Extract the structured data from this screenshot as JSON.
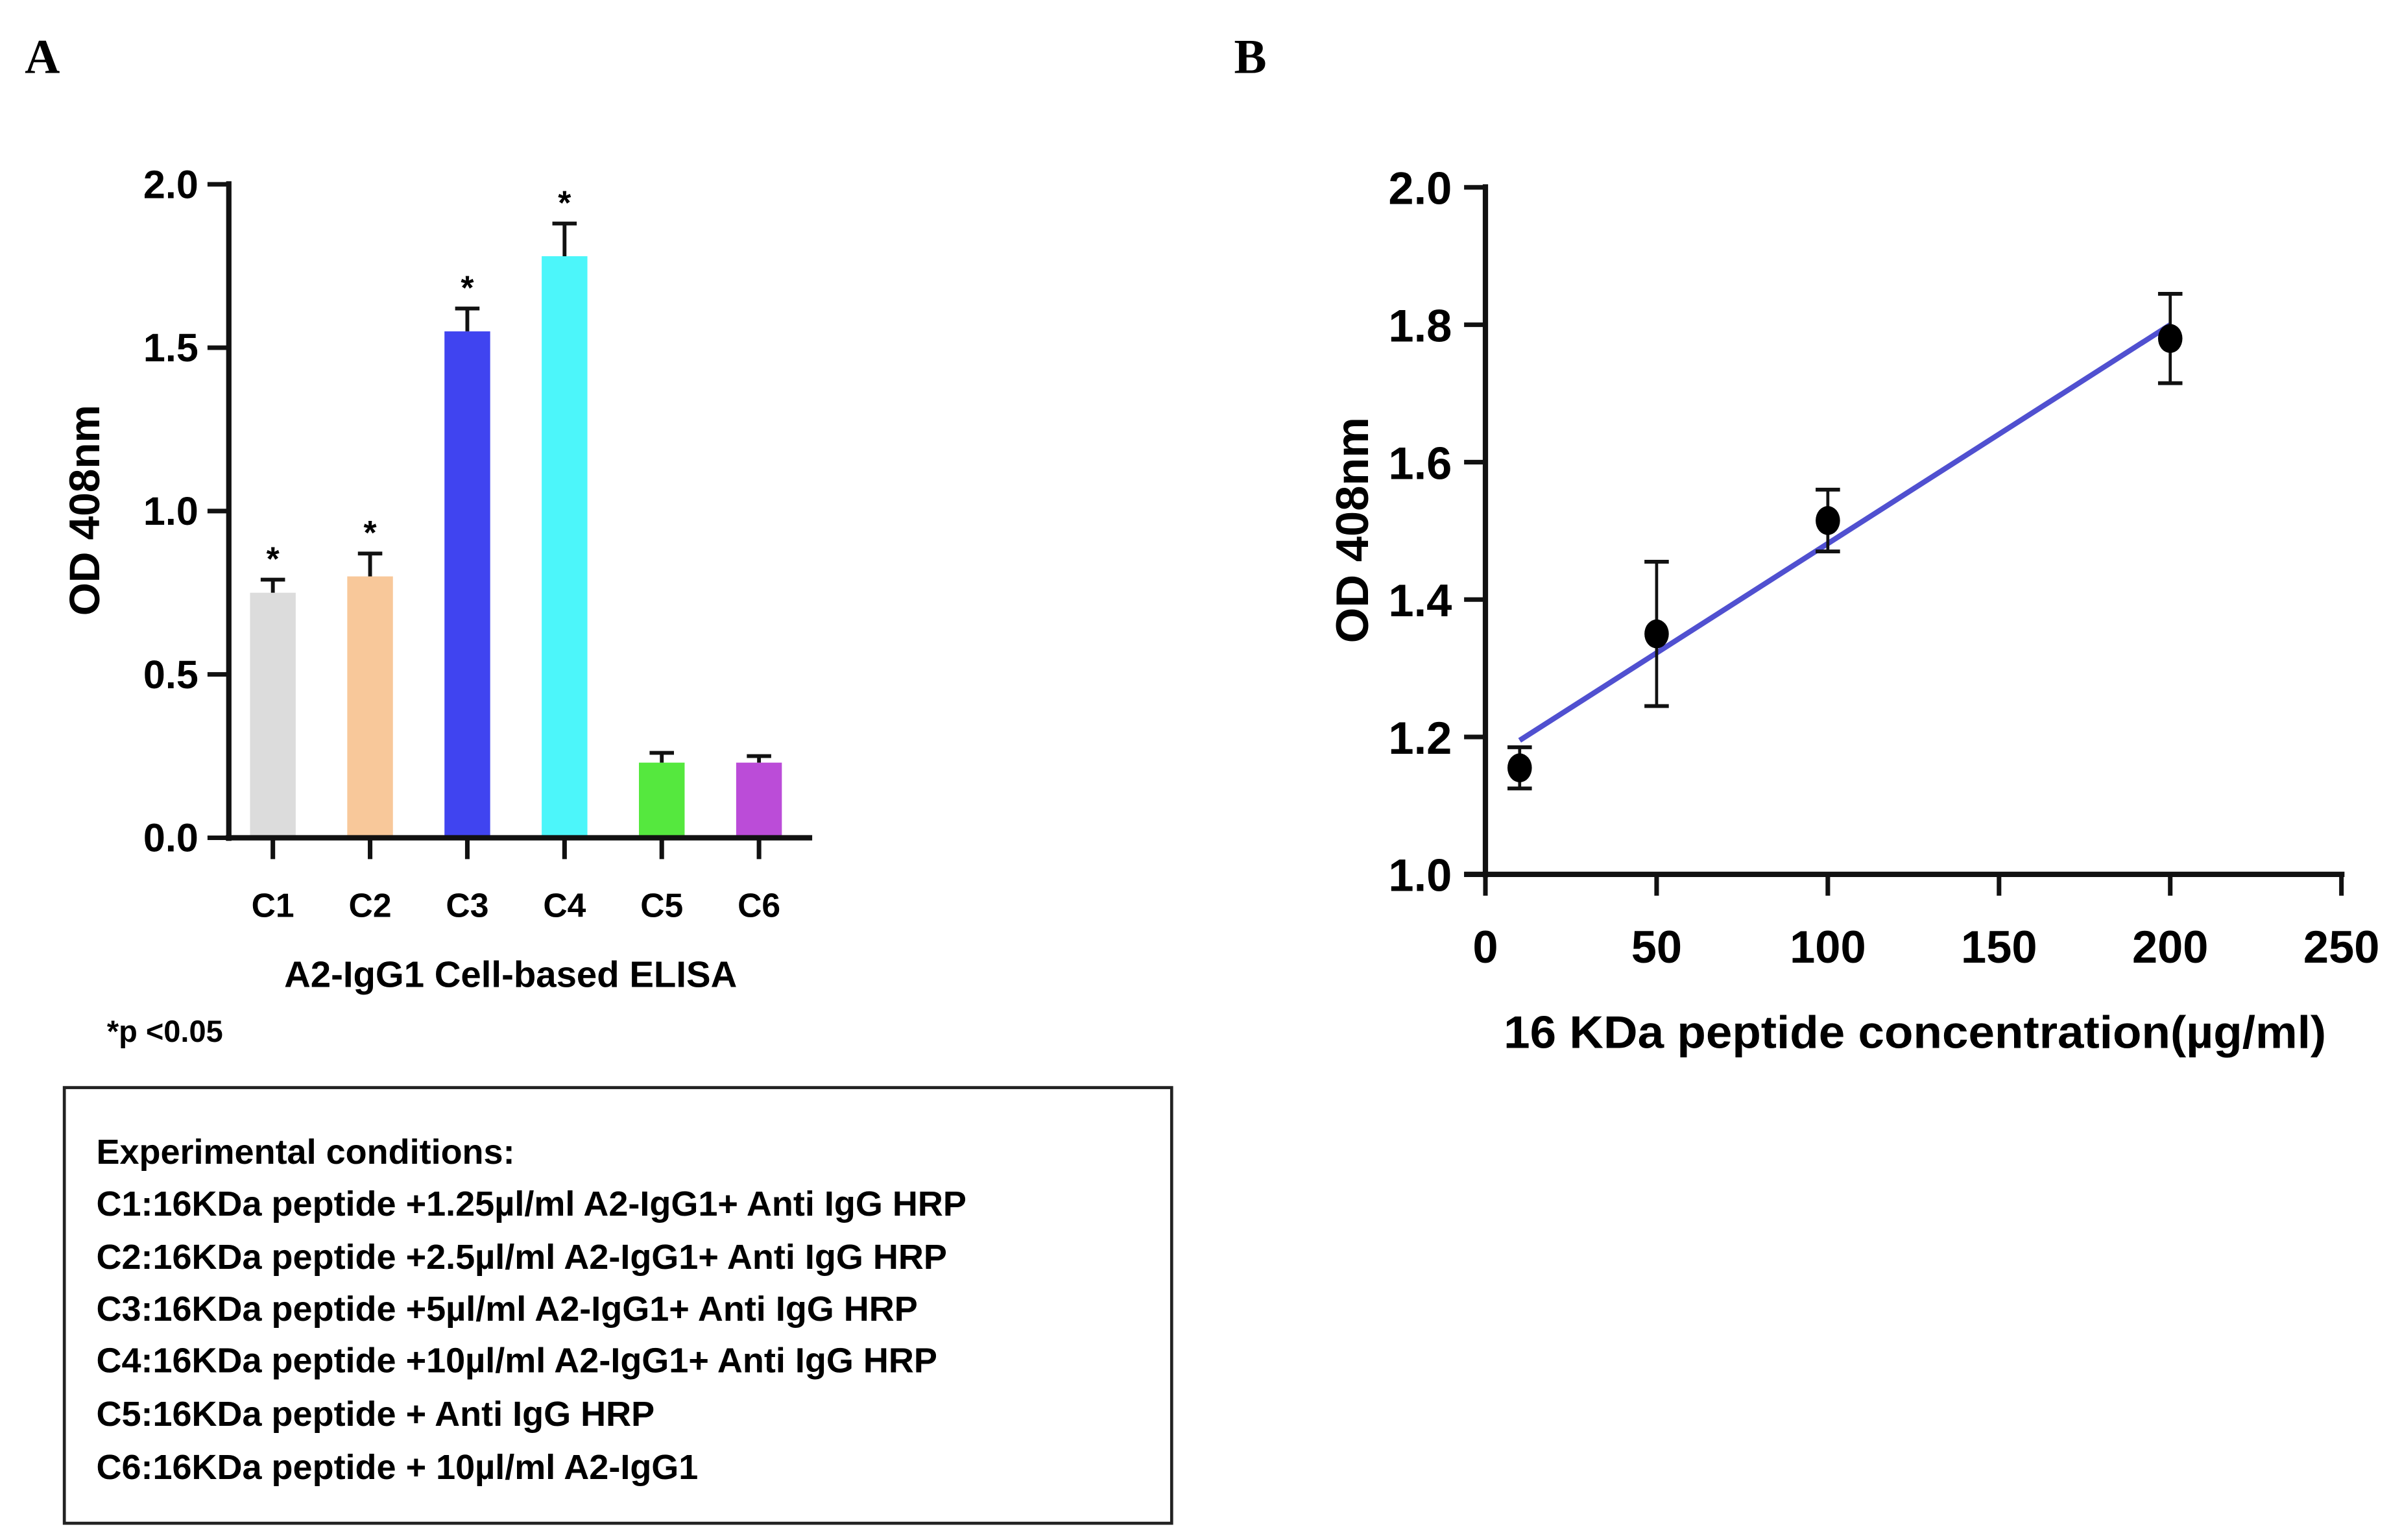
{
  "panels": {
    "a_label": "A",
    "b_label": "B"
  },
  "significance_note": "*p <0.05",
  "conditions_box": {
    "title": "Experimental conditions:",
    "lines": [
      "C1:16KDa peptide +1.25µl/ml A2-IgG1+ Anti IgG HRP",
      "C2:16KDa peptide +2.5µl/ml A2-IgG1+ Anti IgG HRP",
      "C3:16KDa peptide +5µl/ml A2-IgG1+ Anti IgG HRP",
      "C4:16KDa peptide +10µl/ml A2-IgG1+ Anti IgG HRP",
      "C5:16KDa peptide + Anti IgG HRP",
      "C6:16KDa peptide + 10µl/ml A2-IgG1"
    ]
  },
  "chart_data": [
    {
      "type": "bar",
      "title": "",
      "xlabel": "A2-IgG1 Cell-based ELISA",
      "ylabel": "OD 408nm",
      "ylim": [
        0,
        2.0
      ],
      "yticks": [
        "0.0",
        "0.5",
        "1.0",
        "1.5",
        "2.0"
      ],
      "categories": [
        "C1",
        "C2",
        "C3",
        "C4",
        "C5",
        "C6"
      ],
      "values": [
        0.75,
        0.8,
        1.55,
        1.78,
        0.23,
        0.23
      ],
      "errors": [
        0.04,
        0.07,
        0.07,
        0.1,
        0.03,
        0.02
      ],
      "significant": [
        true,
        true,
        true,
        true,
        false,
        false
      ],
      "significance_marker": "*",
      "colors": [
        "#dcdcdc",
        "#f8c89a",
        "#4044f0",
        "#4cf6fa",
        "#55e83e",
        "#bb4cd8"
      ],
      "grid": false
    },
    {
      "type": "scatter",
      "title": "",
      "xlabel": "16 KDa peptide concentration(µg/ml)",
      "ylabel": "OD 408nm",
      "xlim": [
        0,
        250
      ],
      "ylim": [
        1.0,
        2.0
      ],
      "xticks": [
        "0",
        "50",
        "100",
        "150",
        "200",
        "250"
      ],
      "yticks": [
        "1.0",
        "1.2",
        "1.4",
        "1.6",
        "1.8",
        "2.0"
      ],
      "x": [
        10,
        50,
        100,
        200
      ],
      "y": [
        1.155,
        1.35,
        1.515,
        1.78
      ],
      "errors": [
        0.03,
        0.105,
        0.045,
        0.065
      ],
      "fit_line": {
        "x": [
          10,
          200
        ],
        "y": [
          1.195,
          1.8
        ],
        "color": "#5050d0"
      },
      "grid": false
    }
  ]
}
